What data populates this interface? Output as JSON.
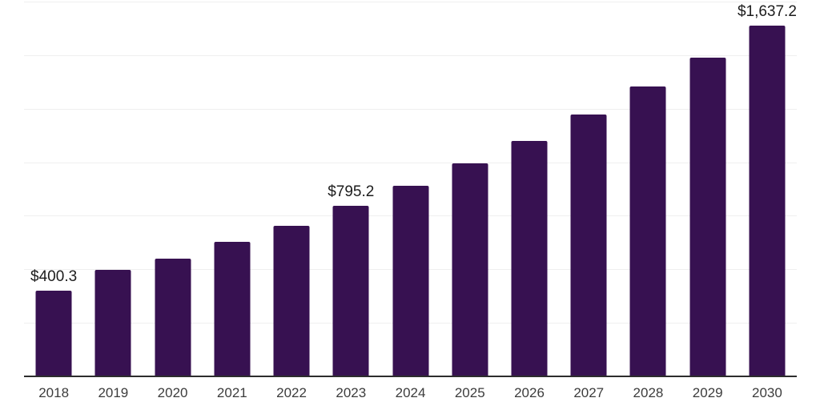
{
  "chart_data": {
    "type": "bar",
    "title": "",
    "xlabel": "",
    "ylabel": "",
    "categories": [
      "2018",
      "2019",
      "2020",
      "2021",
      "2022",
      "2023",
      "2024",
      "2025",
      "2026",
      "2027",
      "2028",
      "2029",
      "2030"
    ],
    "values": [
      400.3,
      497,
      550,
      628,
      703,
      795.2,
      890,
      995,
      1101,
      1223,
      1354,
      1488,
      1637.2
    ],
    "data_labels": {
      "2018": "$400.3",
      "2023": "$795.2",
      "2030": "$1,637.2"
    },
    "ylim": [
      0,
      1750
    ],
    "gridline_step": 250,
    "grid": "horizontal-only",
    "y_tick_labels_visible": false,
    "legend": "none",
    "bar_color": "#371151",
    "gridline_color": "#efefef",
    "axis_line_color": "#2d2d2d",
    "value_label_color": "#1c1c1c",
    "tick_label_color": "#3c3c3c"
  }
}
